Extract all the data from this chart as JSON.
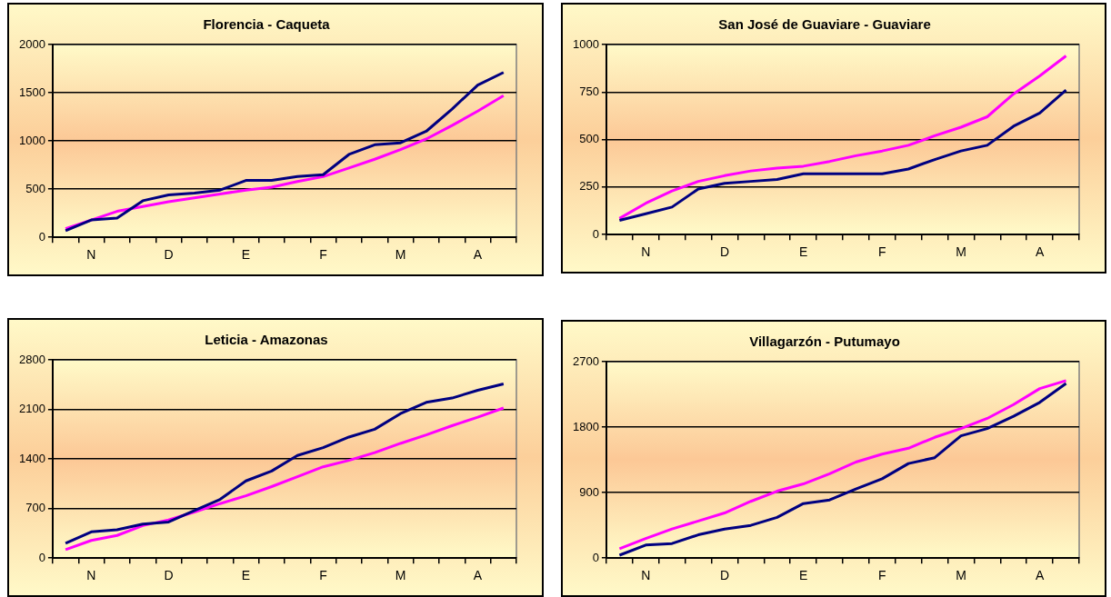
{
  "chart_data": [
    {
      "type": "line",
      "title": "Florencia - Caqueta",
      "categories": [
        null,
        "N",
        null,
        null,
        "D",
        null,
        null,
        "E",
        null,
        null,
        "F",
        null,
        null,
        "M",
        null,
        null,
        "A",
        null
      ],
      "ylim": [
        0,
        2000
      ],
      "yticks": [
        0,
        500,
        1000,
        1500,
        2000
      ],
      "grid": "y",
      "series": [
        {
          "color": "#000080",
          "values": [
            70,
            180,
            200,
            380,
            440,
            460,
            490,
            590,
            590,
            630,
            650,
            860,
            960,
            980,
            1100,
            1330,
            1580,
            1710
          ]
        },
        {
          "color": "#ff00ff",
          "values": [
            90,
            180,
            270,
            320,
            370,
            410,
            450,
            490,
            520,
            580,
            630,
            720,
            810,
            910,
            1020,
            1160,
            1310,
            1470
          ]
        }
      ]
    },
    {
      "type": "line",
      "title": "San José de Guaviare - Guaviare",
      "categories": [
        null,
        "N",
        null,
        null,
        "D",
        null,
        null,
        "E",
        null,
        null,
        "F",
        null,
        null,
        "M",
        null,
        null,
        "A",
        null
      ],
      "ylim": [
        0,
        1000
      ],
      "yticks": [
        0,
        250,
        500,
        750,
        1000
      ],
      "grid": "y",
      "series": [
        {
          "color": "#000080",
          "values": [
            75,
            110,
            145,
            240,
            270,
            280,
            290,
            320,
            320,
            320,
            320,
            345,
            395,
            440,
            470,
            570,
            640,
            760
          ]
        },
        {
          "color": "#ff00ff",
          "values": [
            85,
            165,
            230,
            280,
            310,
            335,
            350,
            360,
            385,
            415,
            440,
            470,
            520,
            565,
            620,
            740,
            835,
            940
          ]
        }
      ]
    },
    {
      "type": "line",
      "title": "Leticia - Amazonas",
      "categories": [
        null,
        "N",
        null,
        null,
        "D",
        null,
        null,
        "E",
        null,
        null,
        "F",
        null,
        null,
        "M",
        null,
        null,
        "A",
        null
      ],
      "ylim": [
        0,
        2800
      ],
      "yticks": [
        0,
        700,
        1400,
        2100,
        2800
      ],
      "grid": "y",
      "series": [
        {
          "color": "#000080",
          "values": [
            210,
            370,
            400,
            480,
            510,
            670,
            830,
            1090,
            1230,
            1450,
            1560,
            1710,
            1820,
            2040,
            2200,
            2260,
            2370,
            2460
          ]
        },
        {
          "color": "#ff00ff",
          "values": [
            120,
            250,
            320,
            460,
            540,
            650,
            770,
            880,
            1010,
            1150,
            1290,
            1380,
            1490,
            1620,
            1740,
            1870,
            1990,
            2120
          ]
        }
      ]
    },
    {
      "type": "line",
      "title": "Villagarzón - Putumayo",
      "categories": [
        null,
        "N",
        null,
        null,
        "D",
        null,
        null,
        "E",
        null,
        null,
        "F",
        null,
        null,
        "M",
        null,
        null,
        "A",
        null
      ],
      "ylim": [
        0,
        2700
      ],
      "yticks": [
        0,
        900,
        1800,
        2700
      ],
      "grid": "y",
      "series": [
        {
          "color": "#000080",
          "values": [
            40,
            180,
            200,
            320,
            400,
            450,
            560,
            750,
            800,
            950,
            1090,
            1300,
            1380,
            1680,
            1780,
            1950,
            2140,
            2400
          ]
        },
        {
          "color": "#ff00ff",
          "values": [
            130,
            270,
            400,
            510,
            620,
            780,
            920,
            1020,
            1160,
            1320,
            1430,
            1510,
            1660,
            1780,
            1920,
            2110,
            2330,
            2440
          ]
        }
      ]
    }
  ]
}
